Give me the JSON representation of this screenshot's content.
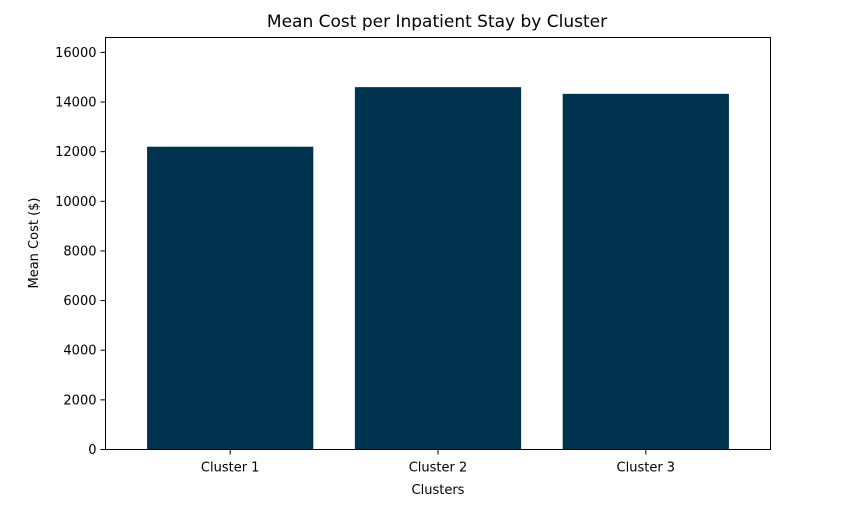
{
  "chart_data": {
    "type": "bar",
    "title": "Mean Cost per Inpatient Stay by Cluster",
    "xlabel": "Clusters",
    "ylabel": "Mean Cost ($)",
    "categories": [
      "Cluster 1",
      "Cluster 2",
      "Cluster 3"
    ],
    "values": [
      12200,
      14600,
      14330
    ],
    "ylim": [
      0,
      16600
    ],
    "yticks": [
      0,
      2000,
      4000,
      6000,
      8000,
      10000,
      12000,
      14000,
      16000
    ],
    "bar_color": "#003350",
    "grid": false,
    "legend": "none"
  }
}
